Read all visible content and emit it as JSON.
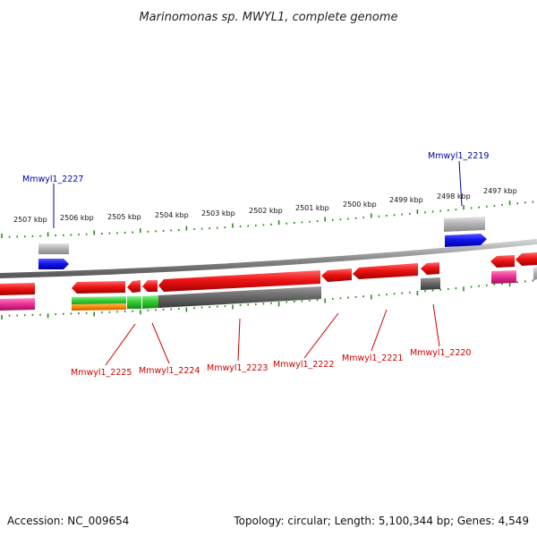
{
  "title": "Marinomonas sp. MWYL1, complete genome",
  "footer": {
    "accession": "Accession: NC_009654",
    "summary": "Topology: circular; Length: 5,100,344 bp; Genes: 4,549"
  },
  "kbp_ticks": [
    "2507 kbp",
    "2506 kbp",
    "2505 kbp",
    "2504 kbp",
    "2503 kbp",
    "2502 kbp",
    "2501 kbp",
    "2500 kbp",
    "2499 kbp",
    "2498 kbp",
    "2497 kbp"
  ],
  "genes_top": [
    {
      "label": "Mmwyl1_2227",
      "color": "#0000aa"
    },
    {
      "label": "Mmwyl1_2219",
      "color": "#0000aa"
    }
  ],
  "genes_bottom": [
    {
      "label": "Mmwyl1_2225",
      "color": "#cc0000"
    },
    {
      "label": "Mmwyl1_2224",
      "color": "#cc0000"
    },
    {
      "label": "Mmwyl1_2223",
      "color": "#cc0000"
    },
    {
      "label": "Mmwyl1_2222",
      "color": "#cc0000"
    },
    {
      "label": "Mmwyl1_2221",
      "color": "#cc0000"
    },
    {
      "label": "Mmwyl1_2220",
      "color": "#cc0000"
    }
  ],
  "colors": {
    "backbone": "#8a8a8a",
    "forward_gene": "#1010ee",
    "reverse_gene": "#ee1010",
    "gray_feature": "#b0b0b0",
    "dark_feature": "#6a6a6a",
    "green_feature": "#33cc33",
    "orange_feature": "#ff8800",
    "pink_feature": "#ee3399",
    "gc_ticks": "#2a8a1a"
  }
}
